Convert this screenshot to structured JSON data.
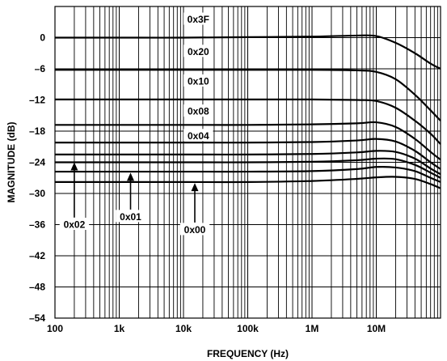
{
  "chart_data": {
    "type": "line",
    "xlabel": "FREQUENCY (Hz)",
    "ylabel": "MAGNITUDE (dB)",
    "xscale": "log",
    "xlim": [
      100,
      100000000
    ],
    "ylim": [
      -54,
      6
    ],
    "grid": true,
    "x_tick_labels": [
      "100",
      "1k",
      "10k",
      "100k",
      "1M",
      "10M"
    ],
    "y_tick_labels": [
      "0",
      "–6",
      "–12",
      "–18",
      "–24",
      "–30",
      "–36",
      "–42",
      "–48",
      "–54"
    ],
    "x": [
      100,
      1000,
      10000,
      100000,
      1000000,
      5000000,
      10000000,
      20000000,
      40000000,
      70000000,
      100000000
    ],
    "series": [
      {
        "name": "0x3F",
        "values": [
          0,
          0,
          0,
          0.1,
          0.2,
          0.4,
          0.3,
          -1,
          -3,
          -5,
          -6
        ]
      },
      {
        "name": "0x20",
        "values": [
          -6.2,
          -6.2,
          -6.2,
          -6.2,
          -6.2,
          -6.3,
          -6.6,
          -8,
          -11,
          -14,
          -16
        ]
      },
      {
        "name": "0x10",
        "values": [
          -11.9,
          -11.9,
          -11.9,
          -11.9,
          -11.9,
          -12,
          -12.2,
          -13.5,
          -16,
          -18.5,
          -20.5
        ]
      },
      {
        "name": "0x08",
        "values": [
          -16.8,
          -16.8,
          -16.8,
          -16.8,
          -16.7,
          -16.5,
          -16.3,
          -17.2,
          -19.5,
          -22,
          -23.5
        ]
      },
      {
        "name": "0x04",
        "values": [
          -20.2,
          -20.2,
          -20.2,
          -20.2,
          -20.1,
          -19.8,
          -19.5,
          -20,
          -21.8,
          -24,
          -25.3
        ]
      },
      {
        "name": "",
        "values": [
          -22.5,
          -22.5,
          -22.5,
          -22.5,
          -22.4,
          -22.1,
          -21.8,
          -22,
          -23.3,
          -25.2,
          -26.3
        ]
      },
      {
        "name": "0x02",
        "values": [
          -24,
          -24,
          -24,
          -24,
          -23.9,
          -23.6,
          -23.3,
          -23.4,
          -24.5,
          -26,
          -27
        ]
      },
      {
        "name": "0x01",
        "values": [
          -25.8,
          -25.8,
          -25.8,
          -25.8,
          -25.7,
          -25.3,
          -24.9,
          -25,
          -25.7,
          -27,
          -27.8
        ]
      },
      {
        "name": "0x00",
        "values": [
          -27.8,
          -27.8,
          -27.8,
          -27.8,
          -27.6,
          -27.2,
          -26.9,
          -26.8,
          -27.2,
          -28.2,
          -29
        ]
      }
    ],
    "annotations": [
      {
        "text": "0x3F",
        "x": 17000,
        "y": 3.5
      },
      {
        "text": "0x20",
        "x": 17000,
        "y": -2.7
      },
      {
        "text": "0x10",
        "x": 17000,
        "y": -8.4
      },
      {
        "text": "0x08",
        "x": 17000,
        "y": -14.2
      },
      {
        "text": "0x04",
        "x": 17000,
        "y": -18.9
      },
      {
        "text": "0x02",
        "x": 200,
        "y": -36,
        "arrow_to_y": -24
      },
      {
        "text": "0x01",
        "x": 1500,
        "y": -34.5,
        "arrow_to_y": -26
      },
      {
        "text": "0x00",
        "x": 15000,
        "y": -37,
        "arrow_to_y": -28
      }
    ]
  }
}
